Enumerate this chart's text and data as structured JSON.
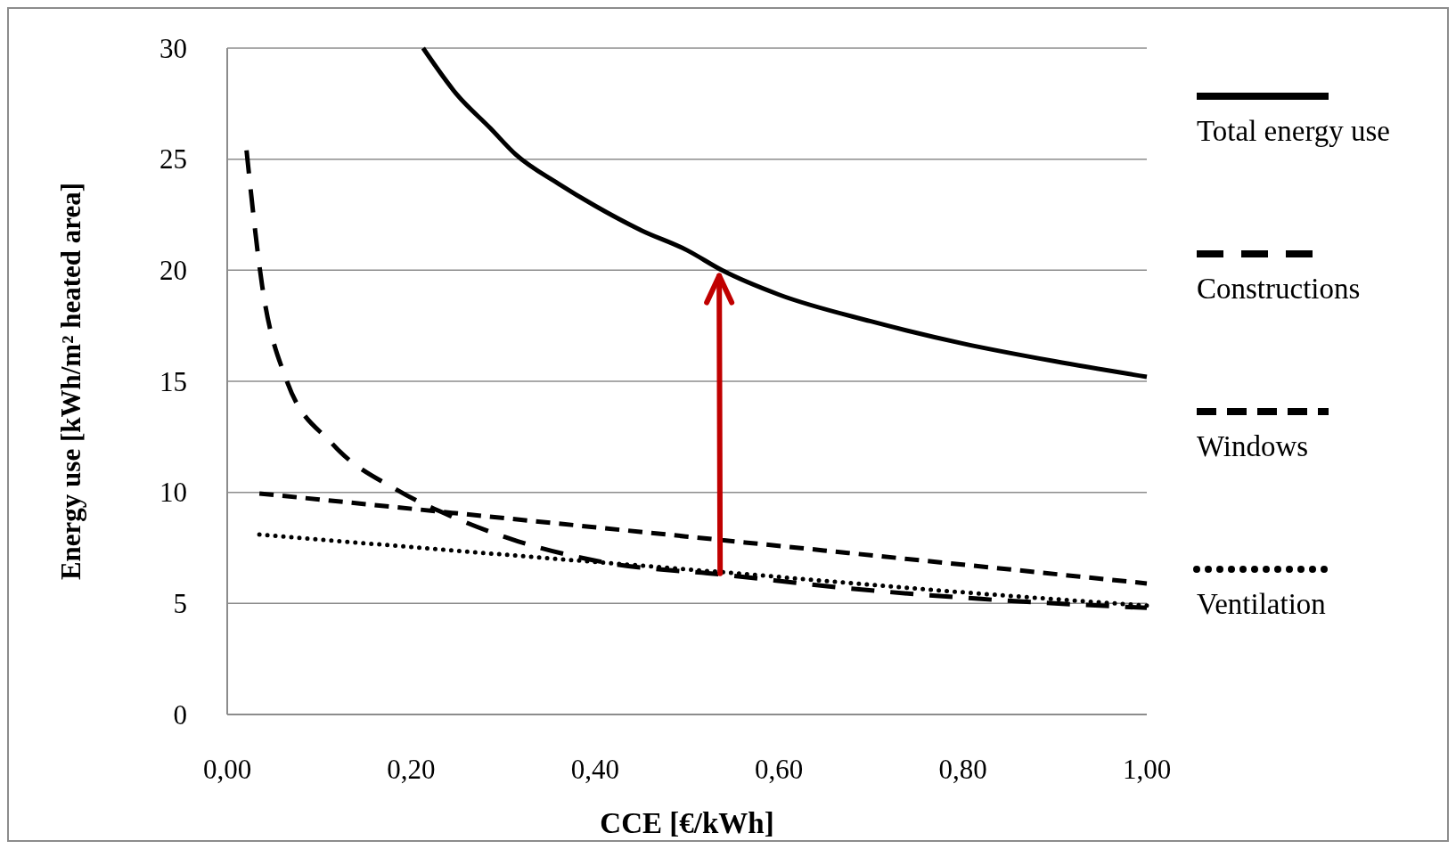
{
  "chart_data": {
    "type": "line",
    "xlabel": "CCE [€/kWh]",
    "ylabel": "Energy use [kWh/m² heated area]",
    "xlim": [
      0,
      1
    ],
    "xticks": [
      {
        "value": 0,
        "label": "0,00"
      },
      {
        "value": 0.2,
        "label": "0,20"
      },
      {
        "value": 0.4,
        "label": "0,40"
      },
      {
        "value": 0.6,
        "label": "0,60"
      },
      {
        "value": 0.8,
        "label": "0,80"
      },
      {
        "value": 1,
        "label": "1,00"
      }
    ],
    "ylim": [
      0,
      30
    ],
    "yticks": [
      0,
      5,
      10,
      15,
      20,
      25,
      30
    ],
    "grid": "y",
    "legend": "right",
    "series": [
      {
        "name": "Total energy use",
        "color": "#000000",
        "line_style": "solid",
        "x": [
          0.213,
          0.25,
          0.286,
          0.314,
          0.36,
          0.4,
          0.45,
          0.5,
          0.538,
          0.6,
          0.7,
          0.8,
          0.9,
          1.0
        ],
        "values": [
          30,
          27.9,
          26.4,
          25.2,
          23.9,
          22.9,
          21.8,
          20.9,
          20,
          18.9,
          17.7,
          16.7,
          15.9,
          15.2
        ]
      },
      {
        "name": "Constructions",
        "color": "#000000",
        "line_style": "dashed",
        "x": [
          0.021,
          0.038,
          0.064,
          0.114,
          0.185,
          0.245,
          0.316,
          0.417,
          0.538,
          0.67,
          0.82,
          1.0
        ],
        "values": [
          25.4,
          19.3,
          15.1,
          12.2,
          10.1,
          8.9,
          7.8,
          6.8,
          6.3,
          5.7,
          5.2,
          4.8
        ]
      },
      {
        "name": "Windows",
        "color": "#000000",
        "line_style": "dashed",
        "x": [
          0.035,
          0.538,
          1.0
        ],
        "values": [
          9.95,
          7.85,
          5.9
        ]
      },
      {
        "name": "Ventilation",
        "color": "#000000",
        "line_style": "dotted",
        "x": [
          0.035,
          0.3,
          0.54,
          0.8,
          1.0
        ],
        "values": [
          8.1,
          7.2,
          6.4,
          5.5,
          4.9
        ]
      }
    ]
  }
}
